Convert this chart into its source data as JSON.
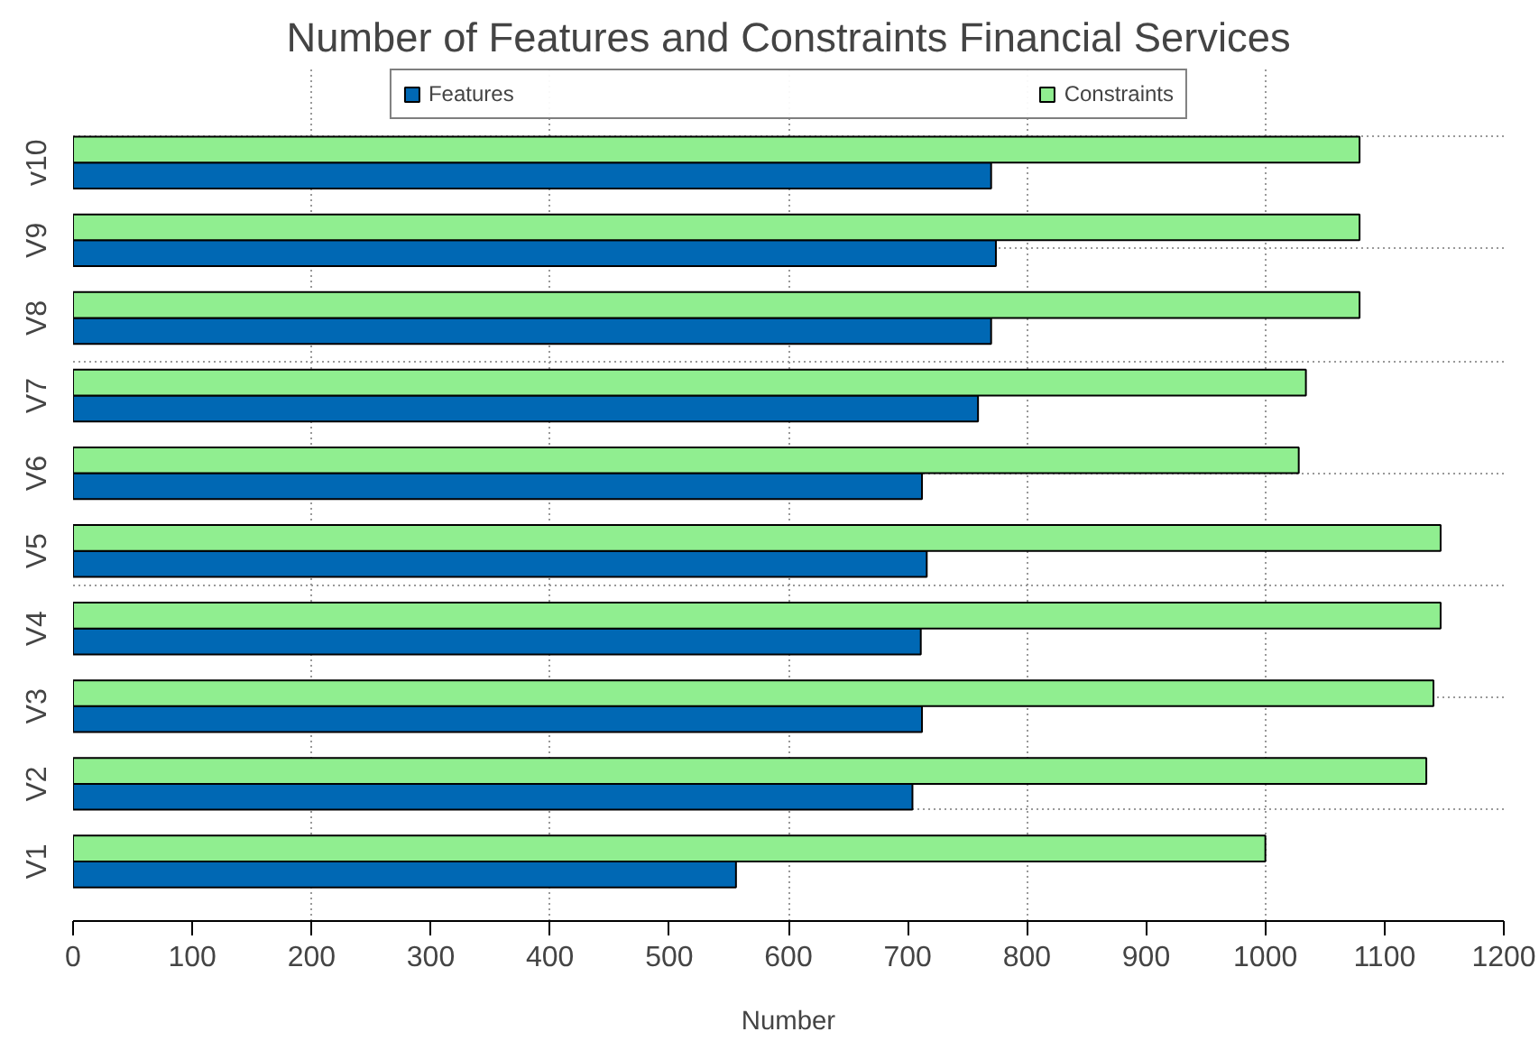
{
  "chart_data": {
    "type": "bar",
    "orientation": "horizontal",
    "title": "Number of Features and Constraints Financial Services",
    "xlabel": "Number",
    "categories": [
      "v10",
      "V9",
      "V8",
      "V7",
      "V6",
      "V5",
      "V4",
      "V3",
      "V2",
      "V1"
    ],
    "series": [
      {
        "name": "Features",
        "color": "#0068b4",
        "values": [
          770,
          774,
          770,
          759,
          712,
          716,
          711,
          712,
          704,
          556
        ]
      },
      {
        "name": "Constraints",
        "color": "#90ee90",
        "values": [
          1079,
          1079,
          1079,
          1034,
          1028,
          1147,
          1147,
          1141,
          1135,
          1000
        ]
      }
    ],
    "xlim": [
      0,
      1200
    ],
    "xticks": [
      0,
      100,
      200,
      300,
      400,
      500,
      600,
      700,
      800,
      900,
      1000,
      1100,
      1200
    ],
    "grid": true,
    "legend": "top"
  }
}
